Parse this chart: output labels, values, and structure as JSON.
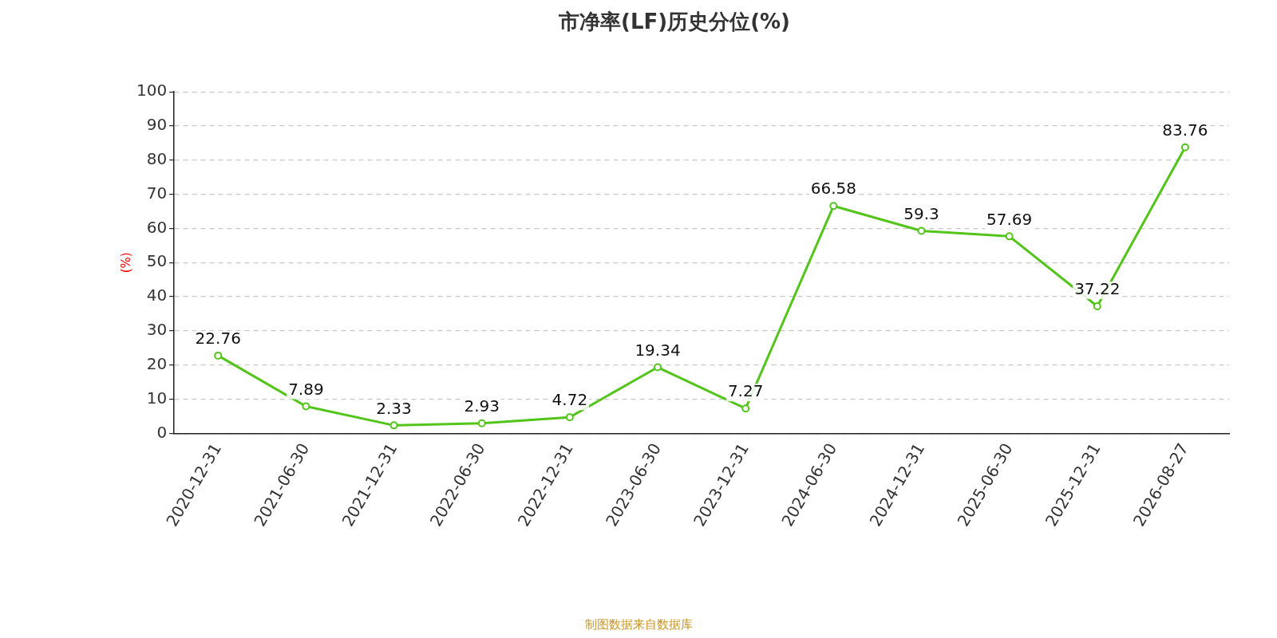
{
  "chart_data": {
    "type": "line",
    "title": "市净率(LF)历史分位(%)",
    "ylabel": "(%)",
    "categories": [
      "2020-12-31",
      "2021-06-30",
      "2021-12-31",
      "2022-06-30",
      "2022-12-31",
      "2023-06-30",
      "2023-12-31",
      "2024-06-30",
      "2024-12-31",
      "2025-06-30",
      "2025-12-31",
      "2026-08-27"
    ],
    "series": [
      {
        "color": "#52c41a",
        "values": [
          22.76,
          7.89,
          2.33,
          2.93,
          4.72,
          19.34,
          7.27,
          66.58,
          59.3,
          57.69,
          37.22,
          83.76
        ]
      }
    ],
    "ylim": [
      0,
      100
    ],
    "yticks": [
      0,
      10,
      20,
      30,
      40,
      50,
      60,
      70,
      80,
      90,
      100
    ],
    "grid": "y",
    "marker": "circle",
    "line_style": "solid",
    "data_labels": true,
    "legend": false,
    "annotations": [
      "制图数据来自数据库"
    ]
  }
}
